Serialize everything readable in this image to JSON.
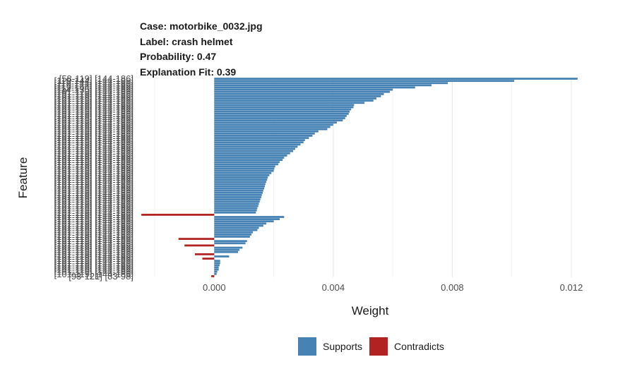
{
  "header": {
    "case": "Case: motorbike_0032.jpg",
    "label": "Label: crash helmet",
    "probability": "Probability: 0.47",
    "fit": "Explanation Fit: 0.39"
  },
  "chart_data": {
    "type": "bar",
    "orientation": "horizontal",
    "xlabel": "Weight",
    "ylabel": "Feature",
    "xlim": [
      -0.0025,
      0.0125
    ],
    "xticks": [
      0.0,
      0.004,
      0.008,
      0.012
    ],
    "xtick_labels": [
      "0.000",
      "0.004",
      "0.008",
      "0.012"
    ],
    "grid": true,
    "legend_position": "bottom",
    "colors": {
      "supports": "#4682b4",
      "contradicts": "#b22222"
    },
    "legend": [
      {
        "label": "Supports",
        "color": "#4682b4"
      },
      {
        "label": "Contradicts",
        "color": "#b22222"
      }
    ],
    "features": [
      "[58-119] [144-186]",
      "[119-144] [144-186]",
      "[119-144] [144-186]",
      "[119-144] [144-186]",
      "[119-144] [144-186]",
      "[114-135] [144-186]",
      "[101-119] [144-186]",
      "[101-119] [144-186]",
      "[101-119] [144-186]",
      "[101-119] [144-186]",
      "[101-119] [144-186]",
      "[101-119] [144-186]",
      "[101-119] [144-186]",
      "[101-119] [144-186]",
      "[101-119] [144-186]",
      "[101-119] [144-186]",
      "[101-119] [144-186]",
      "[101-119] [144-186]",
      "[101-119] [144-186]",
      "[101-119] [144-186]",
      "[101-119] [144-186]",
      "[101-119] [144-186]",
      "[101-119] [144-186]",
      "[101-119] [144-186]",
      "[101-119] [144-186]",
      "[101-119] [144-186]",
      "[101-119] [144-186]",
      "[101-119] [144-186]",
      "[101-119] [144-186]",
      "[101-119] [144-186]",
      "[101-119] [144-186]",
      "[101-119] [144-186]",
      "[101-119] [144-186]",
      "[101-119] [144-186]",
      "[101-119] [144-186]",
      "[101-119] [144-186]",
      "[101-119] [144-186]",
      "[101-119] [144-186]",
      "[101-119] [144-186]",
      "[101-119] [144-186]",
      "[101-119] [144-186]",
      "[101-119] [144-186]",
      "[101-119] [144-186]",
      "[101-119] [144-186]",
      "[101-119] [144-186]",
      "[101-119] [144-186]",
      "[101-119] [144-186]",
      "[101-119] [144-186]",
      "[101-119] [144-186]",
      "[101-119] [144-186]",
      "[101-119] [144-186]",
      "[101-119] [144-186]",
      "[101-119] [144-186]",
      "[101-119] [144-186]",
      "[101-119] [144-186]",
      "[101-119] [144-186]",
      "[101-119] [144-186]",
      "[101-119] [144-186]",
      "[101-119] [144-186]",
      "[101-119] [144-186]",
      "[101-119] [144-186]",
      "[101-119] [144-186]",
      "[101-119] [144-186]",
      "[101-119] [144-186]",
      "[101-119] [144-186]",
      "[101-119] [144-186]",
      "[101-119] [144-186]",
      "[101-119] [144-186]",
      "[101-119] [144-186]",
      "[101-119] [144-186]",
      "[101-119] [144-186]",
      "[101-119] [144-186]",
      "[101-119] [144-186]",
      "[101-119] [144-186]",
      "[101-119] [144-186]",
      "[101-119] [144-186]",
      "[101-119] [144-186]",
      "[101-119] [144-186]",
      "[101-119] [144-186]",
      "[101-119] [144-186]",
      "[101-119] [144-186]",
      "[101-119] [144-186]",
      "[101-119] [144-186]",
      "[101-119] [144-186]",
      "[101-119] [144-186]",
      "[101-119] [144-186]",
      "[101-119] [144-186]",
      "[101-119] [144-186]",
      "[101-119] [144-186]",
      "[101-119] [144-186]",
      "[93-121] [83-98]"
    ],
    "values": [
      0.01221,
      0.01008,
      0.00785,
      0.0073,
      0.00675,
      0.006,
      0.0059,
      0.0057,
      0.0056,
      0.00545,
      0.00535,
      0.00505,
      0.0047,
      0.00468,
      0.0046,
      0.00455,
      0.00452,
      0.00445,
      0.0044,
      0.00432,
      0.00412,
      0.004,
      0.0039,
      0.0038,
      0.0035,
      0.00338,
      0.0033,
      0.00318,
      0.00305,
      0.003,
      0.0029,
      0.0028,
      0.00272,
      0.00265,
      0.00255,
      0.00245,
      0.00235,
      0.0023,
      0.0022,
      0.00215,
      0.00205,
      0.00202,
      0.002,
      0.00192,
      0.00185,
      0.0018,
      0.00178,
      0.00175,
      0.00172,
      0.0017,
      0.00168,
      0.00165,
      0.00163,
      0.0016,
      0.00158,
      0.00155,
      0.00153,
      0.0015,
      0.00148,
      0.00145,
      0.00143,
      0.0014,
      -0.00245,
      0.00235,
      0.0022,
      0.002,
      0.00175,
      0.00165,
      0.0015,
      0.00145,
      0.0013,
      0.00125,
      0.0012,
      -0.0012,
      0.0011,
      0.00105,
      -0.001,
      0.00095,
      0.00085,
      0.0008,
      -0.00065,
      0.0005,
      -0.0004,
      0.0002,
      0.0002,
      0.00018,
      0.00015,
      0.00015,
      0.0001,
      8e-05,
      -0.0001
    ]
  }
}
